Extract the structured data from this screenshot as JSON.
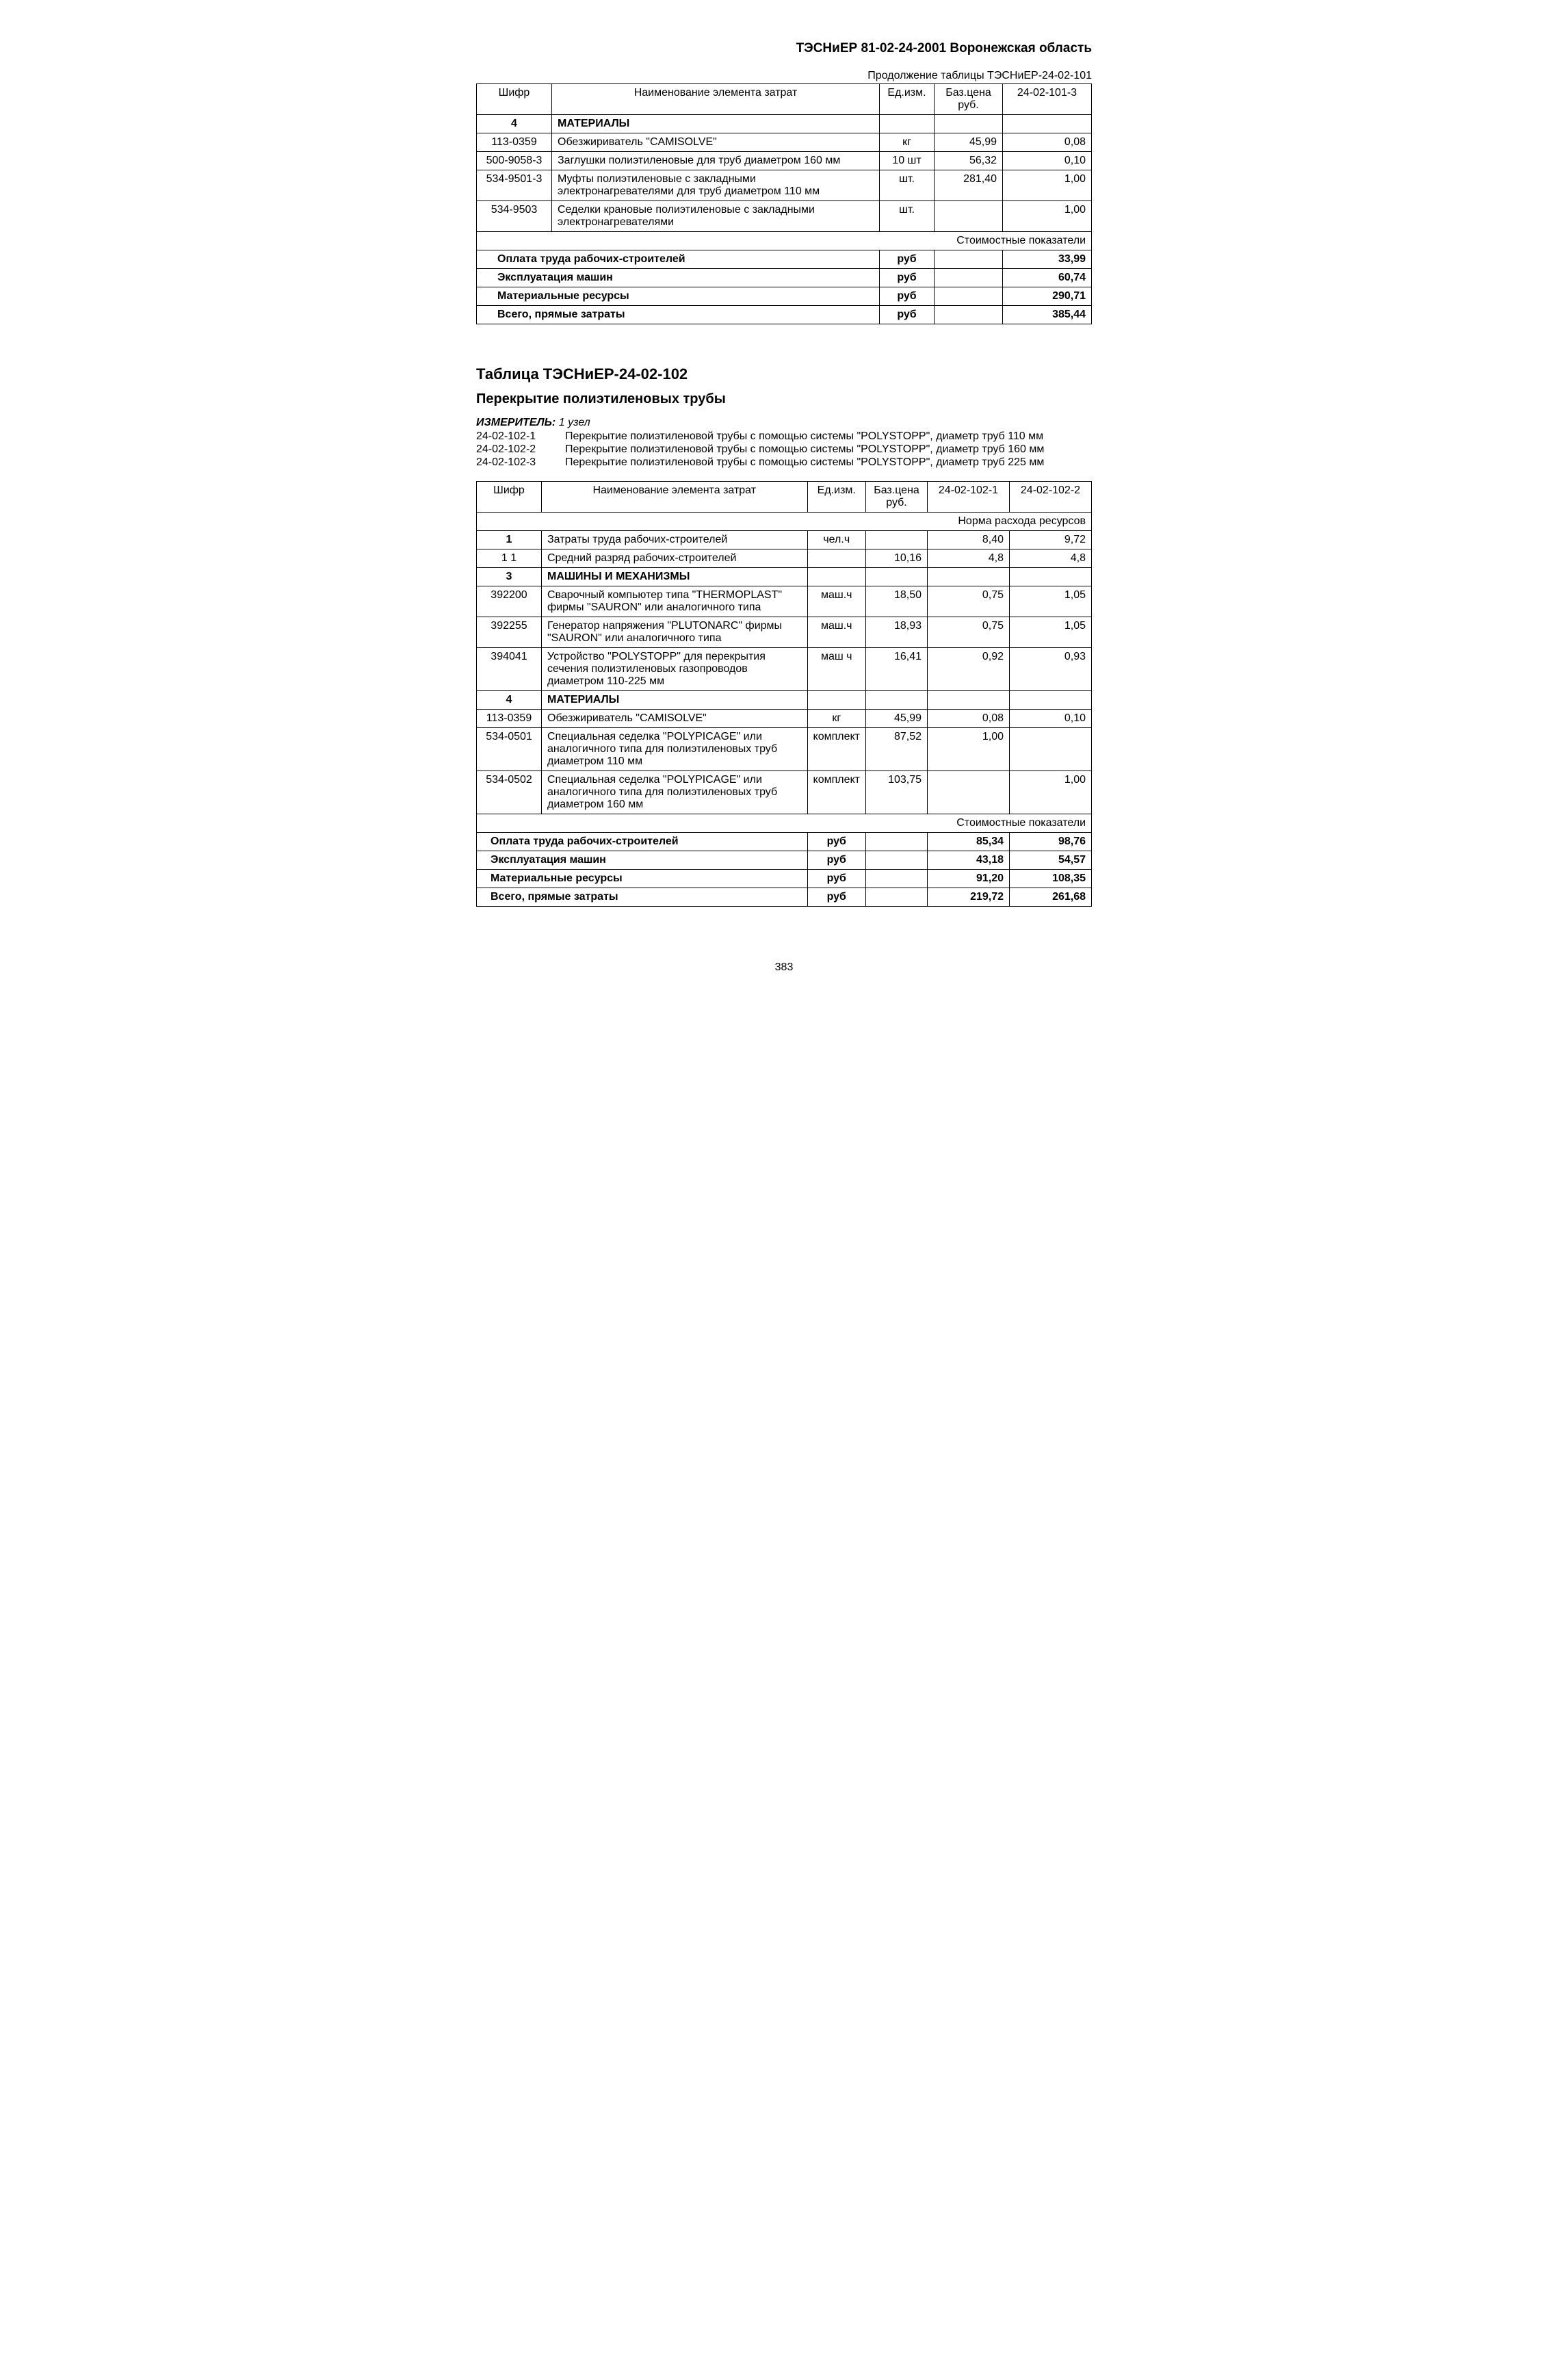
{
  "doc_header": "ТЭСНиЕР 81-02-24-2001 Воронежская область",
  "continuation_label": "Продолжение таблицы ТЭСНиЕР-24-02-101",
  "page_number": "383",
  "table1": {
    "headers": {
      "code": "Шифр",
      "name": "Наименование элемента затрат",
      "unit": "Ед.изм.",
      "base_price": "Баз.цена\nруб.",
      "col5": "24-02-101-3"
    },
    "section4_code": "4",
    "section4_title": "МАТЕРИАЛЫ",
    "rows": [
      {
        "code": "113-0359",
        "name": "Обезжириватель \"CAMISOLVE\"",
        "unit": "кг",
        "price": "45,99",
        "q": "0,08"
      },
      {
        "code": "500-9058-3",
        "name": "Заглушки полиэтиленовые для труб диаметром 160 мм",
        "unit": "10 шт",
        "price": "56,32",
        "q": "0,10"
      },
      {
        "code": "534-9501-3",
        "name": "Муфты полиэтиленовые с закладными электронагревателями для труб диаметром 110 мм",
        "unit": "шт.",
        "price": "281,40",
        "q": "1,00"
      },
      {
        "code": "534-9503",
        "name": "Седелки крановые полиэтиленовые с закладными электронагревателями",
        "unit": "шт.",
        "price": "",
        "q": "1,00"
      }
    ],
    "indicators_label": "Стоимостные показатели",
    "summary": [
      {
        "label": "Оплата труда рабочих-строителей",
        "unit": "руб",
        "v": "33,99"
      },
      {
        "label": "Эксплуатация машин",
        "unit": "руб",
        "v": "60,74"
      },
      {
        "label": "Материальные ресурсы",
        "unit": "руб",
        "v": "290,71"
      },
      {
        "label": "Всего, прямые затраты",
        "unit": "руб",
        "v": "385,44"
      }
    ]
  },
  "section2": {
    "table_title": "Таблица  ТЭСНиЕР-24-02-102",
    "subtitle": "Перекрытие полиэтиленовых трубы",
    "measure_label": "ИЗМЕРИТЕЛЬ:",
    "measure_value": "1 узел",
    "descriptions": [
      {
        "code": "24-02-102-1",
        "text": "Перекрытие полиэтиленовой трубы с помощью системы \"POLYSTOPP\", диаметр труб 110 мм"
      },
      {
        "code": "24-02-102-2",
        "text": "Перекрытие полиэтиленовой трубы с помощью системы \"POLYSTOPP\", диаметр труб 160 мм"
      },
      {
        "code": "24-02-102-3",
        "text": "Перекрытие полиэтиленовой трубы с помощью системы \"POLYSTOPP\", диаметр труб 225 мм"
      }
    ]
  },
  "table2": {
    "headers": {
      "code": "Шифр",
      "name": "Наименование элемента затрат",
      "unit": "Ед.изм.",
      "base_price": "Баз.цена\nруб.",
      "col5": "24-02-102-1",
      "col6": "24-02-102-2"
    },
    "norm_label": "Норма расхода ресурсов",
    "row1": {
      "code": "1",
      "name": "Затраты труда рабочих-строителей",
      "unit": "чел.ч",
      "price": "",
      "v1": "8,40",
      "v2": "9,72"
    },
    "row11": {
      "code": "1 1",
      "name": "Средний разряд рабочих-строителей",
      "unit": "",
      "price": "10,16",
      "v1": "4,8",
      "v2": "4,8"
    },
    "section3_code": "3",
    "section3_title": "МАШИНЫ И МЕХАНИЗМЫ",
    "machines": [
      {
        "code": "392200",
        "name": "Сварочный компьютер типа \"THERMOPLAST\" фирмы \"SAURON\" или аналогичного типа",
        "unit": "маш.ч",
        "price": "18,50",
        "v1": "0,75",
        "v2": "1,05"
      },
      {
        "code": "392255",
        "name": "Генератор напряжения \"PLUTONARC\" фирмы \"SAURON\" или аналогичного типа",
        "unit": "маш.ч",
        "price": "18,93",
        "v1": "0,75",
        "v2": "1,05"
      },
      {
        "code": "394041",
        "name": "Устройство \"POLYSTOPP\" для перекрытия сечения полиэтиленовых газопроводов диаметром 110-225 мм",
        "unit": "маш ч",
        "price": "16,41",
        "v1": "0,92",
        "v2": "0,93"
      }
    ],
    "section4_code": "4",
    "section4_title": "МАТЕРИАЛЫ",
    "materials": [
      {
        "code": "113-0359",
        "name": "Обезжириватель \"CAMISOLVE\"",
        "unit": "кг",
        "price": "45,99",
        "v1": "0,08",
        "v2": "0,10"
      },
      {
        "code": "534-0501",
        "name": "Специальная седелка \"POLYPICAGE\" или аналогичного типа для полиэтиленовых труб диаметром 110 мм",
        "unit": "комплект",
        "price": "87,52",
        "v1": "1,00",
        "v2": ""
      },
      {
        "code": "534-0502",
        "name": "Специальная седелка \"POLYPICAGE\" или аналогичного типа для полиэтиленовых труб диаметром 160 мм",
        "unit": "комплект",
        "price": "103,75",
        "v1": "",
        "v2": "1,00"
      }
    ],
    "indicators_label": "Стоимостные показатели",
    "summary": [
      {
        "label": "Оплата труда рабочих-строителей",
        "unit": "руб",
        "v1": "85,34",
        "v2": "98,76"
      },
      {
        "label": "Эксплуатация машин",
        "unit": "руб",
        "v1": "43,18",
        "v2": "54,57"
      },
      {
        "label": "Материальные ресурсы",
        "unit": "руб",
        "v1": "91,20",
        "v2": "108,35"
      },
      {
        "label": "Всего, прямые затраты",
        "unit": "руб",
        "v1": "219,72",
        "v2": "261,68"
      }
    ]
  }
}
